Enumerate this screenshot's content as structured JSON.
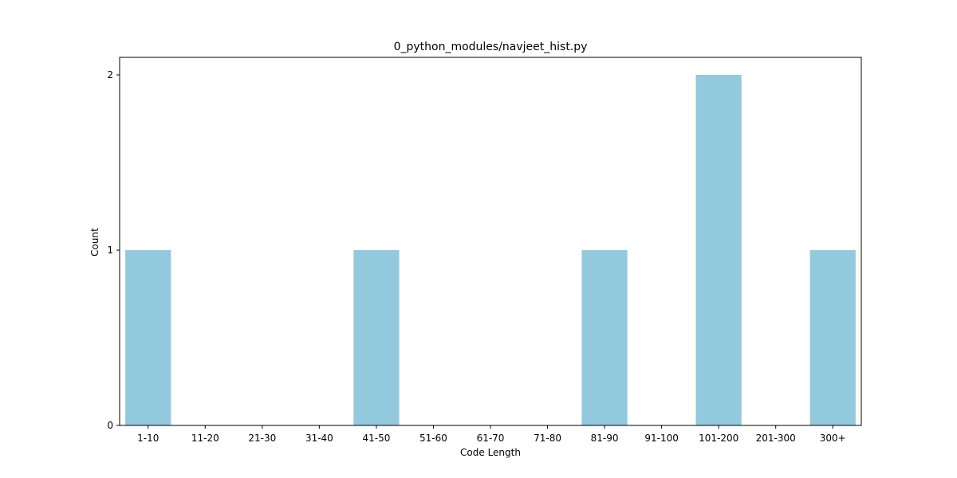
{
  "chart_data": {
    "type": "bar",
    "title": "0_python_modules/navjeet_hist.py",
    "xlabel": "Code Length",
    "ylabel": "Count",
    "categories": [
      "1-10",
      "11-20",
      "21-30",
      "31-40",
      "41-50",
      "51-60",
      "61-70",
      "71-80",
      "81-90",
      "91-100",
      "101-200",
      "201-300",
      "300+"
    ],
    "values": [
      1,
      0,
      0,
      0,
      1,
      0,
      0,
      0,
      1,
      0,
      2,
      0,
      1
    ],
    "ylim": [
      0,
      2.1
    ],
    "yticks": [
      0,
      1,
      2
    ],
    "bar_color": "#92c9dd",
    "grid": false,
    "legend": false
  }
}
